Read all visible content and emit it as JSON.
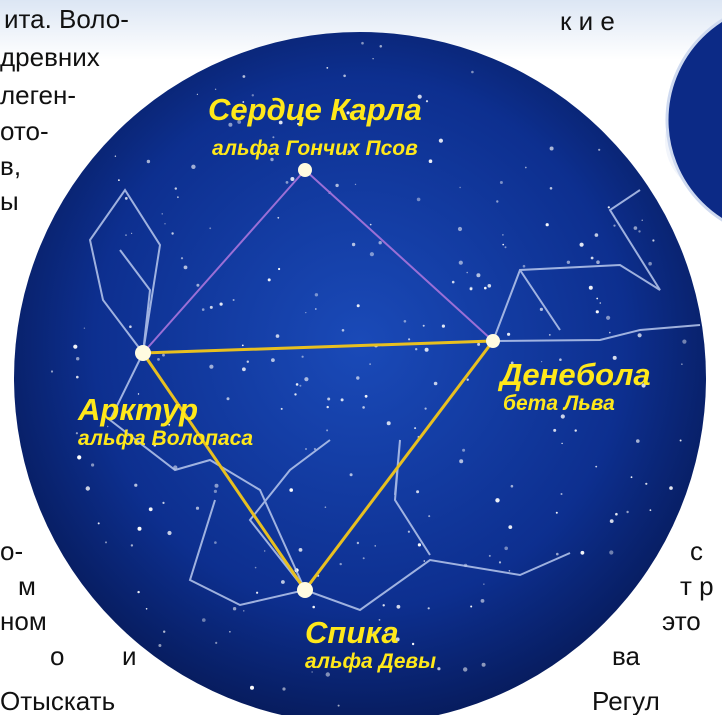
{
  "text_fragments": {
    "left": [
      "ита. Воло-",
      "древних",
      "леген-",
      "ото-",
      "в,",
      "ы",
      "о-",
      "м",
      "ном",
      "о",
      "и",
      "Отыскать"
    ],
    "right": [
      "к и е",
      "с",
      "т р",
      "это",
      "ва",
      "Регул"
    ]
  },
  "labels": [
    {
      "name": "Сердце Карла",
      "designation": "альфа Гончих Псов"
    },
    {
      "name": "Арктур",
      "designation": "альфа Волопаса"
    },
    {
      "name": "Денебола",
      "designation": "бета Льва"
    },
    {
      "name": "Спика",
      "designation": "альфа Девы"
    }
  ]
}
